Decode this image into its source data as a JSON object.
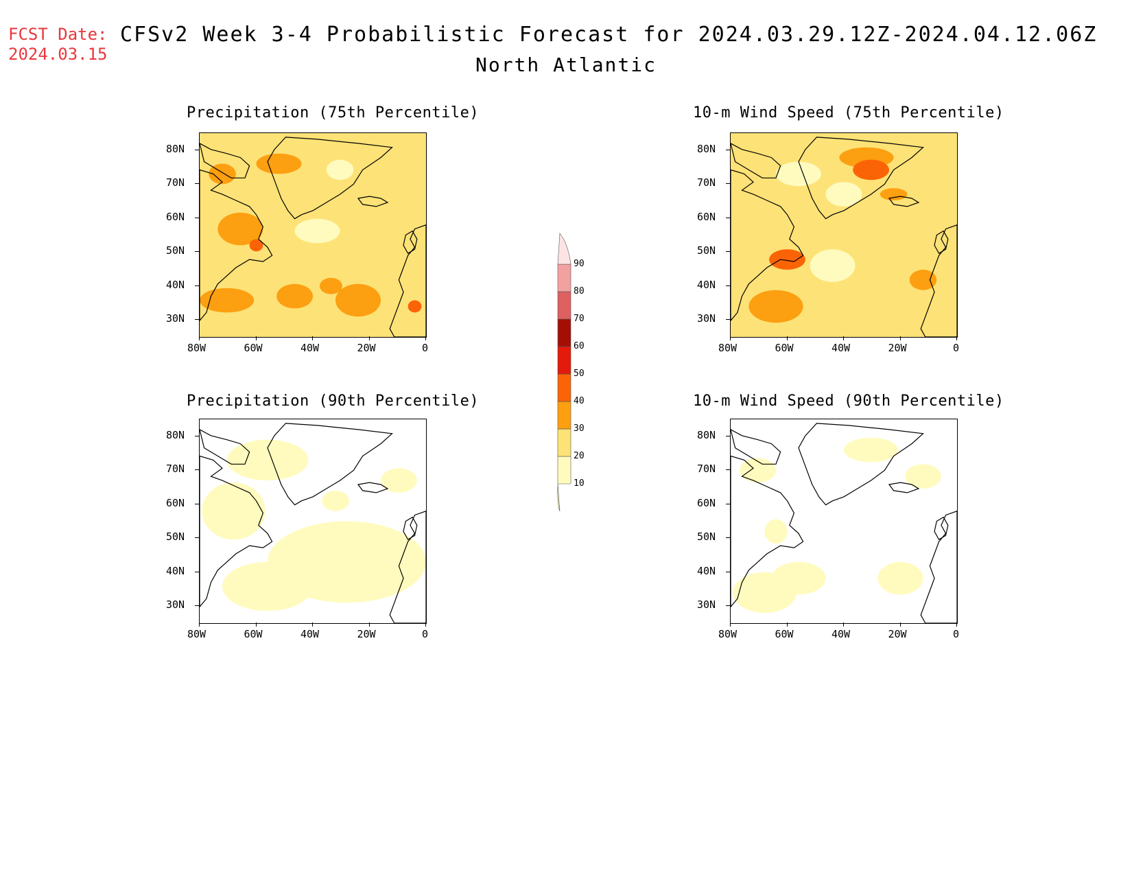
{
  "header": {
    "fcst_label": "FCST Date:",
    "fcst_date": "2024.03.15",
    "title": "CFSv2 Week 3-4 Probabilistic Forecast for 2024.03.29.12Z-2024.04.12.06Z",
    "subtitle": "North Atlantic"
  },
  "panels": [
    {
      "title": "Precipitation (75th Percentile)",
      "variable": "precipitation",
      "percentile": 75
    },
    {
      "title": "10-m Wind Speed (75th Percentile)",
      "variable": "wind",
      "percentile": 75
    },
    {
      "title": "Precipitation (90th Percentile)",
      "variable": "precipitation",
      "percentile": 90
    },
    {
      "title": "10-m Wind Speed (90th Percentile)",
      "variable": "wind",
      "percentile": 90
    }
  ],
  "axes": {
    "lat_ticks": [
      "80N",
      "70N",
      "60N",
      "50N",
      "40N",
      "30N"
    ],
    "lon_ticks": [
      "80W",
      "60W",
      "40W",
      "20W",
      "0"
    ],
    "lat_range": [
      25,
      85
    ],
    "lon_range": [
      -80,
      0
    ]
  },
  "colorbar": {
    "labels": [
      "10",
      "20",
      "30",
      "40",
      "50",
      "60",
      "70",
      "80",
      "90"
    ],
    "colors": [
      "#fffbbe",
      "#fde277",
      "#fc9f10",
      "#fb6406",
      "#e41a0c",
      "#a50e05",
      "#de6060",
      "#f2a1a1",
      "#fde4e4"
    ]
  }
}
